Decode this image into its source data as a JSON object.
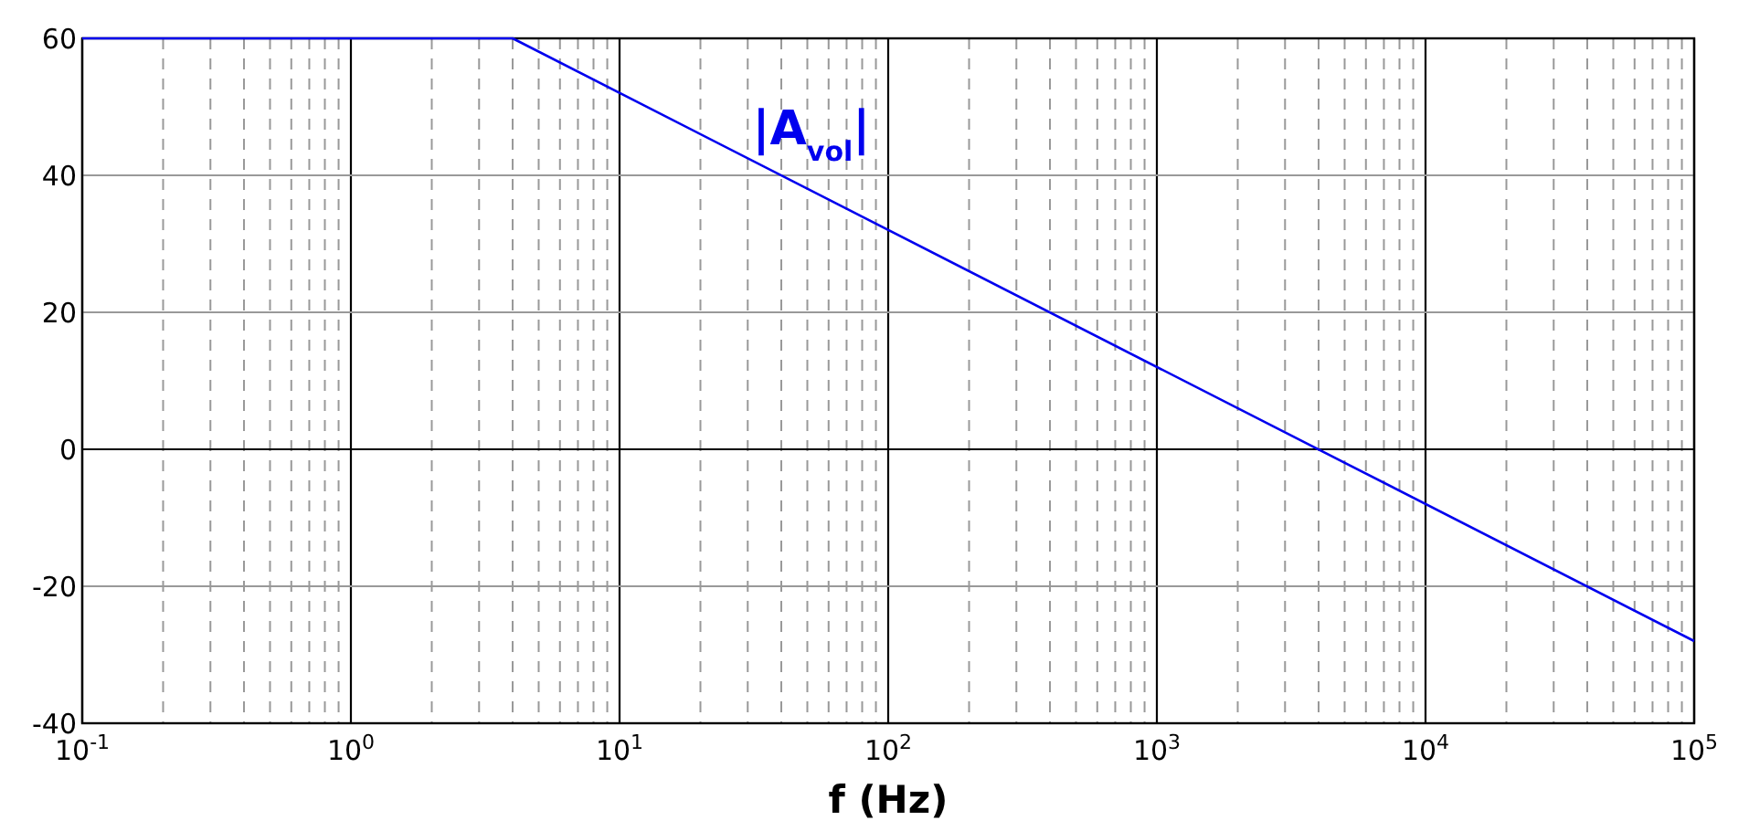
{
  "chart_data": {
    "type": "line",
    "xlabel": "f (Hz)",
    "log": "x",
    "x": [
      0.1,
      4,
      100000
    ],
    "series": [
      {
        "name": "|A$_{vol}$|",
        "color": "#0000ee",
        "values": [
          60,
          60,
          -28
        ]
      }
    ],
    "xlim": [
      0.1,
      100000
    ],
    "xticks": [
      {
        "value": 0.1,
        "label": "10$^{-1}$"
      },
      {
        "value": 0.2,
        "label": null
      },
      {
        "value": 0.3,
        "label": null
      },
      {
        "value": 0.4,
        "label": null
      },
      {
        "value": 0.5,
        "label": null
      },
      {
        "value": 0.6,
        "label": null
      },
      {
        "value": 0.7,
        "label": null
      },
      {
        "value": 0.8,
        "label": null
      },
      {
        "value": 0.9,
        "label": null
      },
      {
        "value": 1,
        "label": "10$^{0}$"
      },
      {
        "value": 2,
        "label": null
      },
      {
        "value": 3,
        "label": null
      },
      {
        "value": 4,
        "label": null
      },
      {
        "value": 5,
        "label": null
      },
      {
        "value": 6,
        "label": null
      },
      {
        "value": 7,
        "label": null
      },
      {
        "value": 8,
        "label": null
      },
      {
        "value": 9,
        "label": null
      },
      {
        "value": 10,
        "label": "10$^{1}$"
      },
      {
        "value": 20,
        "label": null
      },
      {
        "value": 30,
        "label": null
      },
      {
        "value": 40,
        "label": null
      },
      {
        "value": 50,
        "label": null
      },
      {
        "value": 60,
        "label": null
      },
      {
        "value": 70,
        "label": null
      },
      {
        "value": 80,
        "label": null
      },
      {
        "value": 90,
        "label": null
      },
      {
        "value": 100,
        "label": "10$^{2}$"
      },
      {
        "value": 200,
        "label": null
      },
      {
        "value": 300,
        "label": null
      },
      {
        "value": 400,
        "label": null
      },
      {
        "value": 500,
        "label": null
      },
      {
        "value": 600,
        "label": null
      },
      {
        "value": 700,
        "label": null
      },
      {
        "value": 800,
        "label": null
      },
      {
        "value": 900,
        "label": null
      },
      {
        "value": 1000,
        "label": "10$^{3}$"
      },
      {
        "value": 2000,
        "label": null
      },
      {
        "value": 3000,
        "label": null
      },
      {
        "value": 4000,
        "label": null
      },
      {
        "value": 5000,
        "label": null
      },
      {
        "value": 6000,
        "label": null
      },
      {
        "value": 7000,
        "label": null
      },
      {
        "value": 8000,
        "label": null
      },
      {
        "value": 9000,
        "label": null
      },
      {
        "value": 10000,
        "label": "10$^{4}$"
      },
      {
        "value": 20000,
        "label": null
      },
      {
        "value": 30000,
        "label": null
      },
      {
        "value": 40000,
        "label": null
      },
      {
        "value": 50000,
        "label": null
      },
      {
        "value": 60000,
        "label": null
      },
      {
        "value": 70000,
        "label": null
      },
      {
        "value": 80000,
        "label": null
      },
      {
        "value": 90000,
        "label": null
      },
      {
        "value": 100000,
        "label": "10$^{5}$"
      }
    ],
    "ylim": [
      -40,
      60
    ],
    "yticks": [
      -40,
      -20,
      0,
      20,
      40,
      60
    ],
    "grid": true
  }
}
